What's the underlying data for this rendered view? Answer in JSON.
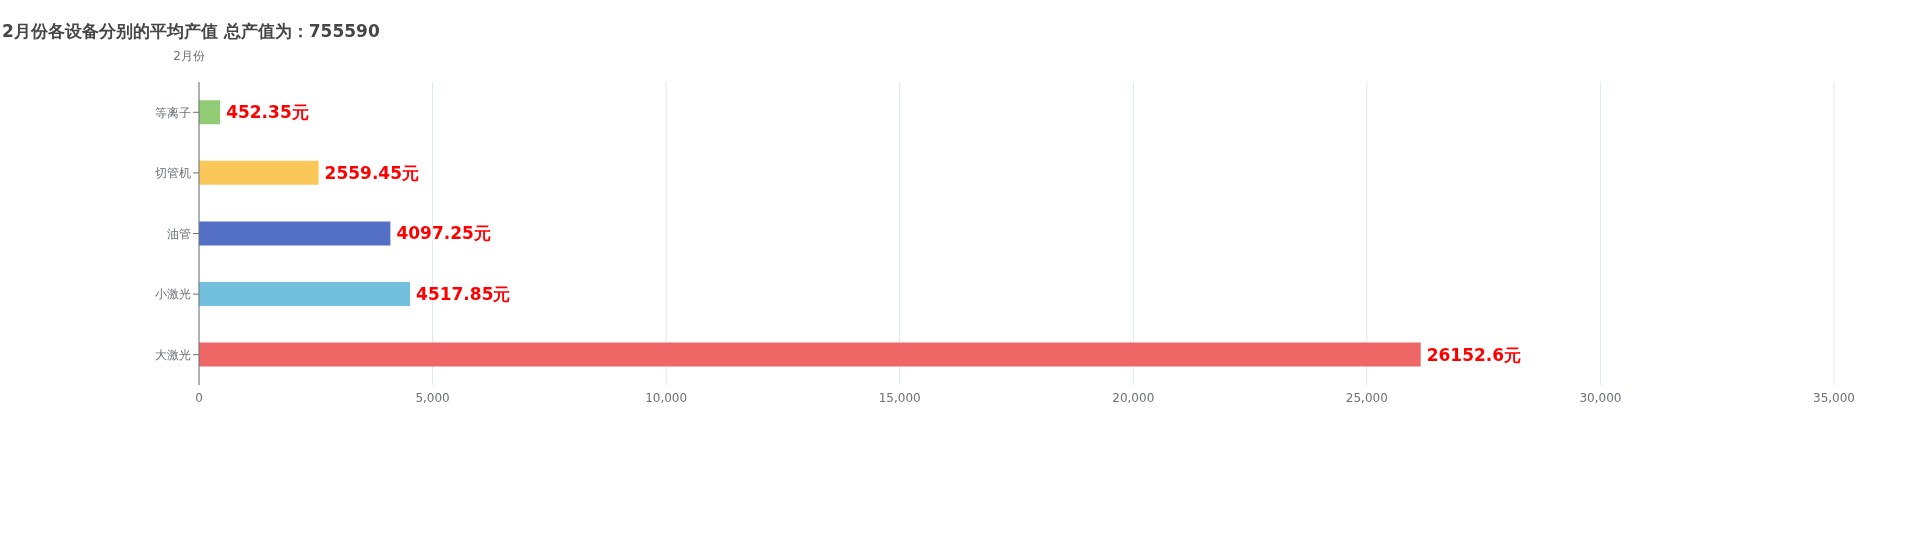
{
  "chart_data": {
    "type": "bar",
    "orientation": "horizontal",
    "title": "2月份各设备分别的平均产值 总产值为：755590",
    "ylabel": "2月份",
    "categories": [
      "等离子",
      "切管机",
      "油管",
      "小激光",
      "大激光"
    ],
    "values": [
      452.35,
      2559.45,
      4097.25,
      4517.85,
      26152.6
    ],
    "colors": [
      "#91cc75",
      "#fac858",
      "#5470c6",
      "#73c0de",
      "#ee6666"
    ],
    "value_labels": [
      "452.35元",
      "2559.45元",
      "4097.25元",
      "4517.85元",
      "26152.6元"
    ],
    "xlim": [
      0,
      35000
    ],
    "xticks": [
      {
        "value": 0,
        "label": "0"
      },
      {
        "value": 5000,
        "label": "5,000"
      },
      {
        "value": 10000,
        "label": "10,000"
      },
      {
        "value": 15000,
        "label": "15,000"
      },
      {
        "value": 20000,
        "label": "20,000"
      },
      {
        "value": 25000,
        "label": "25,000"
      },
      {
        "value": 30000,
        "label": "30,000"
      },
      {
        "value": 35000,
        "label": "35,000"
      }
    ],
    "grid": "x",
    "legend": false
  }
}
